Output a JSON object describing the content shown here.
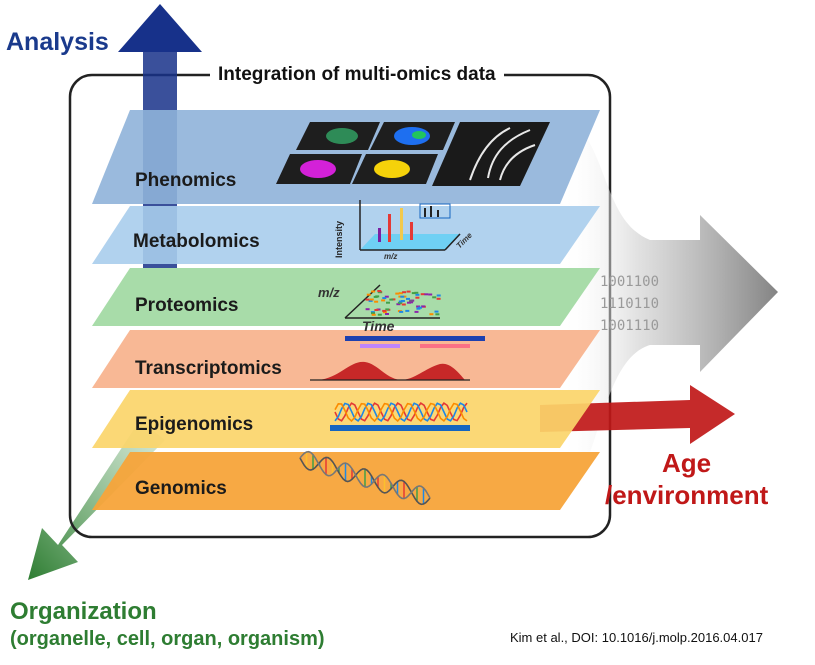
{
  "title": "Integration of multi-omics data",
  "axes": {
    "analysis": "Analysis",
    "age_line1": "Age",
    "age_line2": "/environment",
    "organization": "Organization",
    "organization_sub": "(organelle, cell, organ, organism)"
  },
  "layers": [
    {
      "label": "Phenomics",
      "color": "#8fb3d9"
    },
    {
      "label": "Metabolomics",
      "color": "#a9cdec"
    },
    {
      "label": "Proteomics",
      "color": "#9ed8a0"
    },
    {
      "label": "Transcriptomics",
      "color": "#f7b08a"
    },
    {
      "label": "Epigenomics",
      "color": "#fbd56a"
    },
    {
      "label": "Genomics",
      "color": "#f7a43a"
    }
  ],
  "mini_axes": {
    "intensity": "Intensity",
    "mz_met": "m/z",
    "time_met": "Time",
    "mz_prot": "m/z",
    "time_prot": "Time"
  },
  "binary": [
    "1001100",
    "1110110",
    "1001110"
  ],
  "citation": "Kim et al., DOI: 10.1016/j.molp.2016.04.017",
  "colors": {
    "analysis_arrow": "#17318a",
    "age_arrow": "#c01818",
    "organization_arrow": "#2e7d32",
    "output_arrow": "#8a8a8a"
  }
}
